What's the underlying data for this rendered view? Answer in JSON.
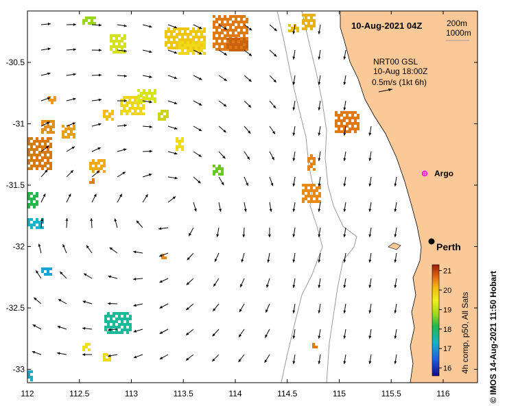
{
  "header": {
    "datetime": "10-Aug-2021 04Z",
    "bathy_label_1": "200m",
    "bathy_label_2": "1000m"
  },
  "current_legend": {
    "source": "NRT00 GSL",
    "time": "10-Aug 18:00Z",
    "scale": "0.5m/s (1kt 6h)"
  },
  "places": {
    "argo": "Argo",
    "city": "Perth"
  },
  "colorbar": {
    "title": "4h comp, p50, All Sats",
    "ticks": [
      "21",
      "20",
      "19",
      "18",
      "17",
      "16"
    ],
    "min": 15.6,
    "max": 21.3
  },
  "credit": "© IMOS 14-Aug-2021 11:50 Hobart",
  "axes": {
    "x_ticks": [
      "112",
      "112.5",
      "113",
      "113.5",
      "114",
      "114.5",
      "115",
      "115.5",
      "116"
    ],
    "y_ticks": [
      "-30.5",
      "-31",
      "-31.5",
      "-32",
      "-32.5",
      "-33"
    ],
    "lon_range": [
      112,
      116.3
    ],
    "lat_range": [
      -33.1,
      -30.0
    ]
  },
  "colors": {
    "land": "#fbc898",
    "bathy_line": "#9a9a9a",
    "marker_argo": "#ff00ff"
  },
  "icons": [
    "argo-float-marker-icon",
    "perth-city-marker-icon",
    "current-arrow-icon"
  ]
}
